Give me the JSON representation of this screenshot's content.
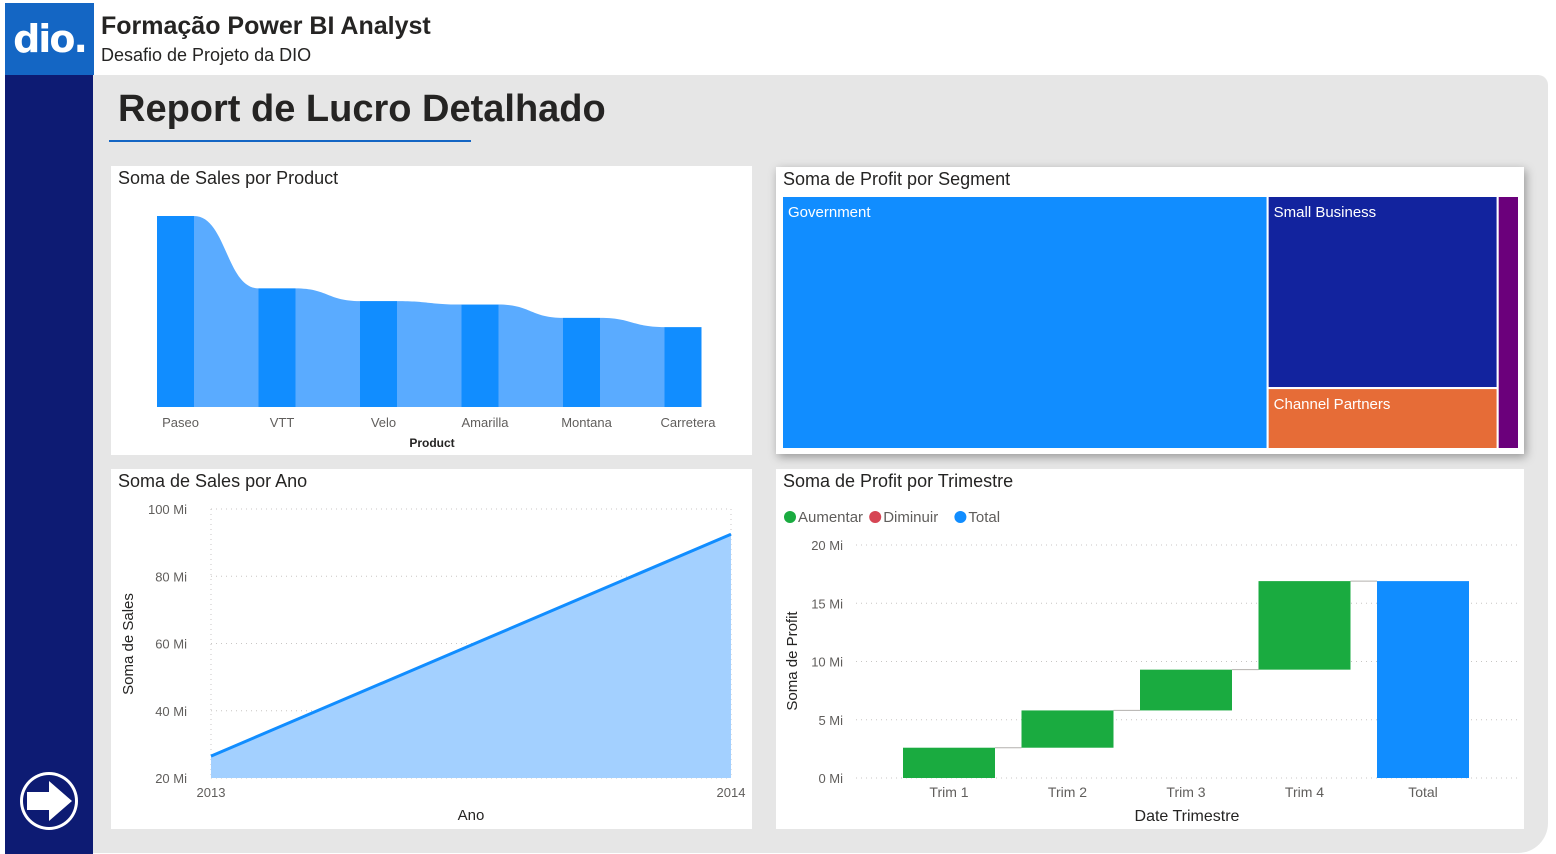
{
  "header": {
    "logo_text": "dio.",
    "title": "Formação Power BI Analyst",
    "subtitle": "Desafio de Projeto da DIO"
  },
  "report": {
    "title": "Report de Lucro Detalhado"
  },
  "nav": {
    "next_icon": "arrow-right-icon"
  },
  "colors": {
    "brand_blue": "#1466c4",
    "sidebar": "#0d1b73",
    "bar_blue": "#118dff",
    "ribbon_blue": "#5aabff",
    "area_fill": "#a3d0ff",
    "increase": "#1aab40",
    "decrease": "#d64554",
    "total": "#118dff",
    "navy": "#12239e",
    "orange": "#e66c37",
    "purple": "#6b007b"
  },
  "charts": {
    "sales_by_product": {
      "title": "Soma de Sales por Product",
      "xlabel": "Product"
    },
    "profit_by_segment": {
      "title": "Soma de Profit por Segment"
    },
    "sales_by_year": {
      "title": "Soma de Sales por Ano",
      "xlabel": "Ano",
      "ylabel": "Soma de Sales"
    },
    "profit_by_quarter": {
      "title": "Soma de Profit por Trimestre",
      "xlabel": "Date Trimestre",
      "ylabel": "Soma de Profit",
      "legend": [
        "Aumentar",
        "Diminuir",
        "Total"
      ]
    }
  },
  "chart_data": [
    {
      "id": "sales_by_product",
      "type": "bar",
      "title": "Soma de Sales por Product",
      "xlabel": "Product",
      "ylabel": "",
      "categories": [
        "Paseo",
        "VTT",
        "Velo",
        "Amarilla",
        "Montana",
        "Carretera"
      ],
      "values": [
        33.0,
        20.5,
        18.3,
        17.7,
        15.4,
        13.8
      ],
      "ylim": [
        0,
        35
      ],
      "style": "ribbon"
    },
    {
      "id": "profit_by_segment",
      "type": "treemap",
      "title": "Soma de Profit por Segment",
      "categories": [
        "Government",
        "Small Business",
        "Channel Partners",
        ""
      ],
      "values": [
        11.4,
        4.1,
        1.3,
        0.5
      ]
    },
    {
      "id": "sales_by_year",
      "type": "area",
      "title": "Soma de Sales por Ano",
      "xlabel": "Ano",
      "ylabel": "Soma de Sales",
      "x": [
        "2013",
        "2014"
      ],
      "values": [
        26.5,
        92.5
      ],
      "ylim": [
        20,
        100
      ],
      "yticks": [
        "20 Mi",
        "40 Mi",
        "60 Mi",
        "80 Mi",
        "100 Mi"
      ],
      "grid": true
    },
    {
      "id": "profit_by_quarter",
      "type": "bar",
      "style": "waterfall",
      "title": "Soma de Profit por Trimestre",
      "xlabel": "Date Trimestre",
      "ylabel": "Soma de Profit",
      "categories": [
        "Trim 1",
        "Trim 2",
        "Trim 3",
        "Trim 4",
        "Total"
      ],
      "values": [
        2.6,
        3.2,
        3.5,
        7.6,
        16.9
      ],
      "kinds": [
        "increase",
        "increase",
        "increase",
        "increase",
        "total"
      ],
      "ylim": [
        0,
        20
      ],
      "yticks": [
        "0 Mi",
        "5 Mi",
        "10 Mi",
        "15 Mi",
        "20 Mi"
      ],
      "legend": [
        "Aumentar",
        "Diminuir",
        "Total"
      ],
      "legend_position": "top-left",
      "grid": true
    }
  ]
}
